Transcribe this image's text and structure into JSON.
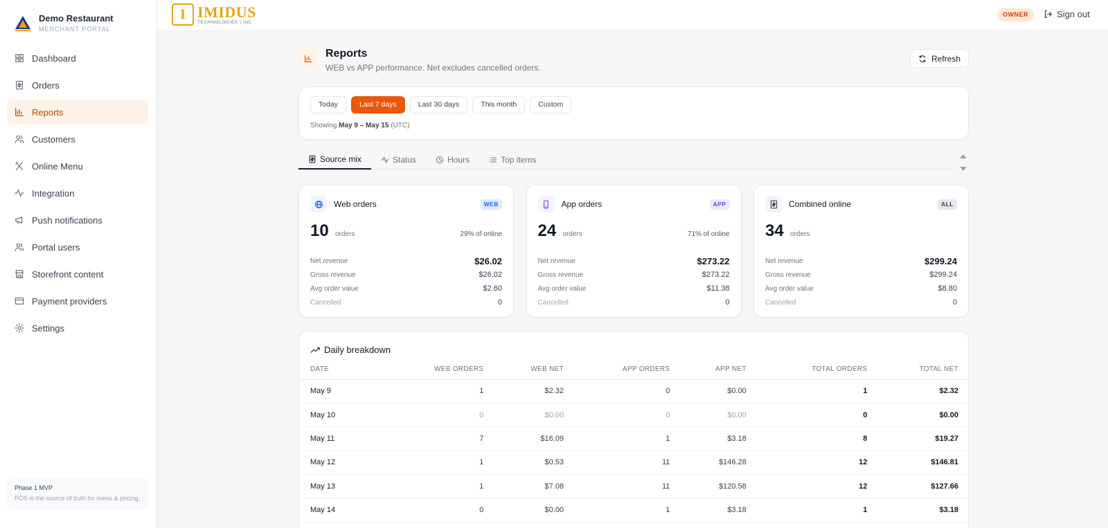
{
  "sidebar": {
    "brand_name": "Demo Restaurant",
    "brand_sub": "MERCHANT PORTAL",
    "items": [
      {
        "label": "Dashboard",
        "icon": "grid-icon"
      },
      {
        "label": "Orders",
        "icon": "receipt-icon"
      },
      {
        "label": "Reports",
        "icon": "bar-chart-icon",
        "active": true
      },
      {
        "label": "Customers",
        "icon": "users-icon"
      },
      {
        "label": "Online Menu",
        "icon": "utensils-icon"
      },
      {
        "label": "Integration",
        "icon": "activity-icon"
      },
      {
        "label": "Push notifications",
        "icon": "megaphone-icon"
      },
      {
        "label": "Portal users",
        "icon": "users-icon"
      },
      {
        "label": "Storefront content",
        "icon": "store-icon"
      },
      {
        "label": "Payment providers",
        "icon": "credit-card-icon"
      },
      {
        "label": "Settings",
        "icon": "gear-icon"
      }
    ],
    "footer_title": "Phase 1 MVP",
    "footer_text": "POS is the source of truth for menu & pricing."
  },
  "topbar": {
    "logo_name": "IMIDUS",
    "logo_sub": "TECHNOLOGIES | INC",
    "role_badge": "OWNER",
    "signout_label": "Sign out"
  },
  "page": {
    "title": "Reports",
    "subtitle": "WEB vs APP performance. Net excludes cancelled orders.",
    "refresh_label": "Refresh"
  },
  "range": {
    "buttons": [
      "Today",
      "Last 7 days",
      "Last 30 days",
      "This month",
      "Custom"
    ],
    "active": "Last 7 days",
    "showing_prefix": "Showing",
    "showing_range": "May 9 – May 15",
    "showing_suffix": "(UTC)"
  },
  "tabs": [
    {
      "label": "Source mix",
      "icon": "dollar-icon",
      "active": true
    },
    {
      "label": "Status",
      "icon": "activity-icon"
    },
    {
      "label": "Hours",
      "icon": "clock-icon"
    },
    {
      "label": "Top items",
      "icon": "list-icon"
    }
  ],
  "cards": [
    {
      "title": "Web orders",
      "badge": "WEB",
      "icon": "globe-icon",
      "count": "10",
      "count_label": "orders",
      "pct": "29% of online",
      "net_label": "Net revenue",
      "net": "$26.02",
      "gross_label": "Gross revenue",
      "gross": "$26.02",
      "aov_label": "Avg order value",
      "aov": "$2.60",
      "cancel_label": "Cancelled",
      "cancel": "0",
      "badge_bg": "#dbeafe",
      "badge_fg": "#2563eb",
      "icon_bg": "#eff6ff",
      "icon_fg": "#2563eb"
    },
    {
      "title": "App orders",
      "badge": "APP",
      "icon": "phone-icon",
      "count": "24",
      "count_label": "orders",
      "pct": "71% of online",
      "net_label": "Net revenue",
      "net": "$273.22",
      "gross_label": "Gross revenue",
      "gross": "$273.22",
      "aov_label": "Avg order value",
      "aov": "$11.38",
      "cancel_label": "Cancelled",
      "cancel": "0",
      "badge_bg": "#ede9fe",
      "badge_fg": "#7c3aed",
      "icon_bg": "#f5f3ff",
      "icon_fg": "#7c3aed"
    },
    {
      "title": "Combined online",
      "badge": "ALL",
      "icon": "dollar-icon",
      "count": "34",
      "count_label": "orders",
      "pct": "",
      "net_label": "Net revenue",
      "net": "$299.24",
      "gross_label": "Gross revenue",
      "gross": "$299.24",
      "aov_label": "Avg order value",
      "aov": "$8.80",
      "cancel_label": "Cancelled",
      "cancel": "0",
      "badge_bg": "#e5e7eb",
      "badge_fg": "#374151",
      "icon_bg": "#f3f4f6",
      "icon_fg": "#374151"
    }
  ],
  "breakdown": {
    "title": "Daily breakdown",
    "columns": [
      "DATE",
      "WEB ORDERS",
      "WEB NET",
      "APP ORDERS",
      "APP NET",
      "TOTAL ORDERS",
      "TOTAL NET"
    ],
    "rows": [
      [
        "May 9",
        "1",
        "$2.32",
        "0",
        "$0.00",
        "1",
        "$2.32"
      ],
      [
        "May 10",
        "0",
        "$0.00",
        "0",
        "$0.00",
        "0",
        "$0.00"
      ],
      [
        "May 11",
        "7",
        "$16.09",
        "1",
        "$3.18",
        "8",
        "$19.27"
      ],
      [
        "May 12",
        "1",
        "$0.53",
        "11",
        "$146.28",
        "12",
        "$146.81"
      ],
      [
        "May 13",
        "1",
        "$7.08",
        "11",
        "$120.58",
        "12",
        "$127.66"
      ],
      [
        "May 14",
        "0",
        "$0.00",
        "1",
        "$3.18",
        "1",
        "$3.18"
      ]
    ]
  },
  "colors": {
    "accent": "#ea580c",
    "accent_soft": "#fff3e8",
    "logo_gold": "#e8a317"
  }
}
